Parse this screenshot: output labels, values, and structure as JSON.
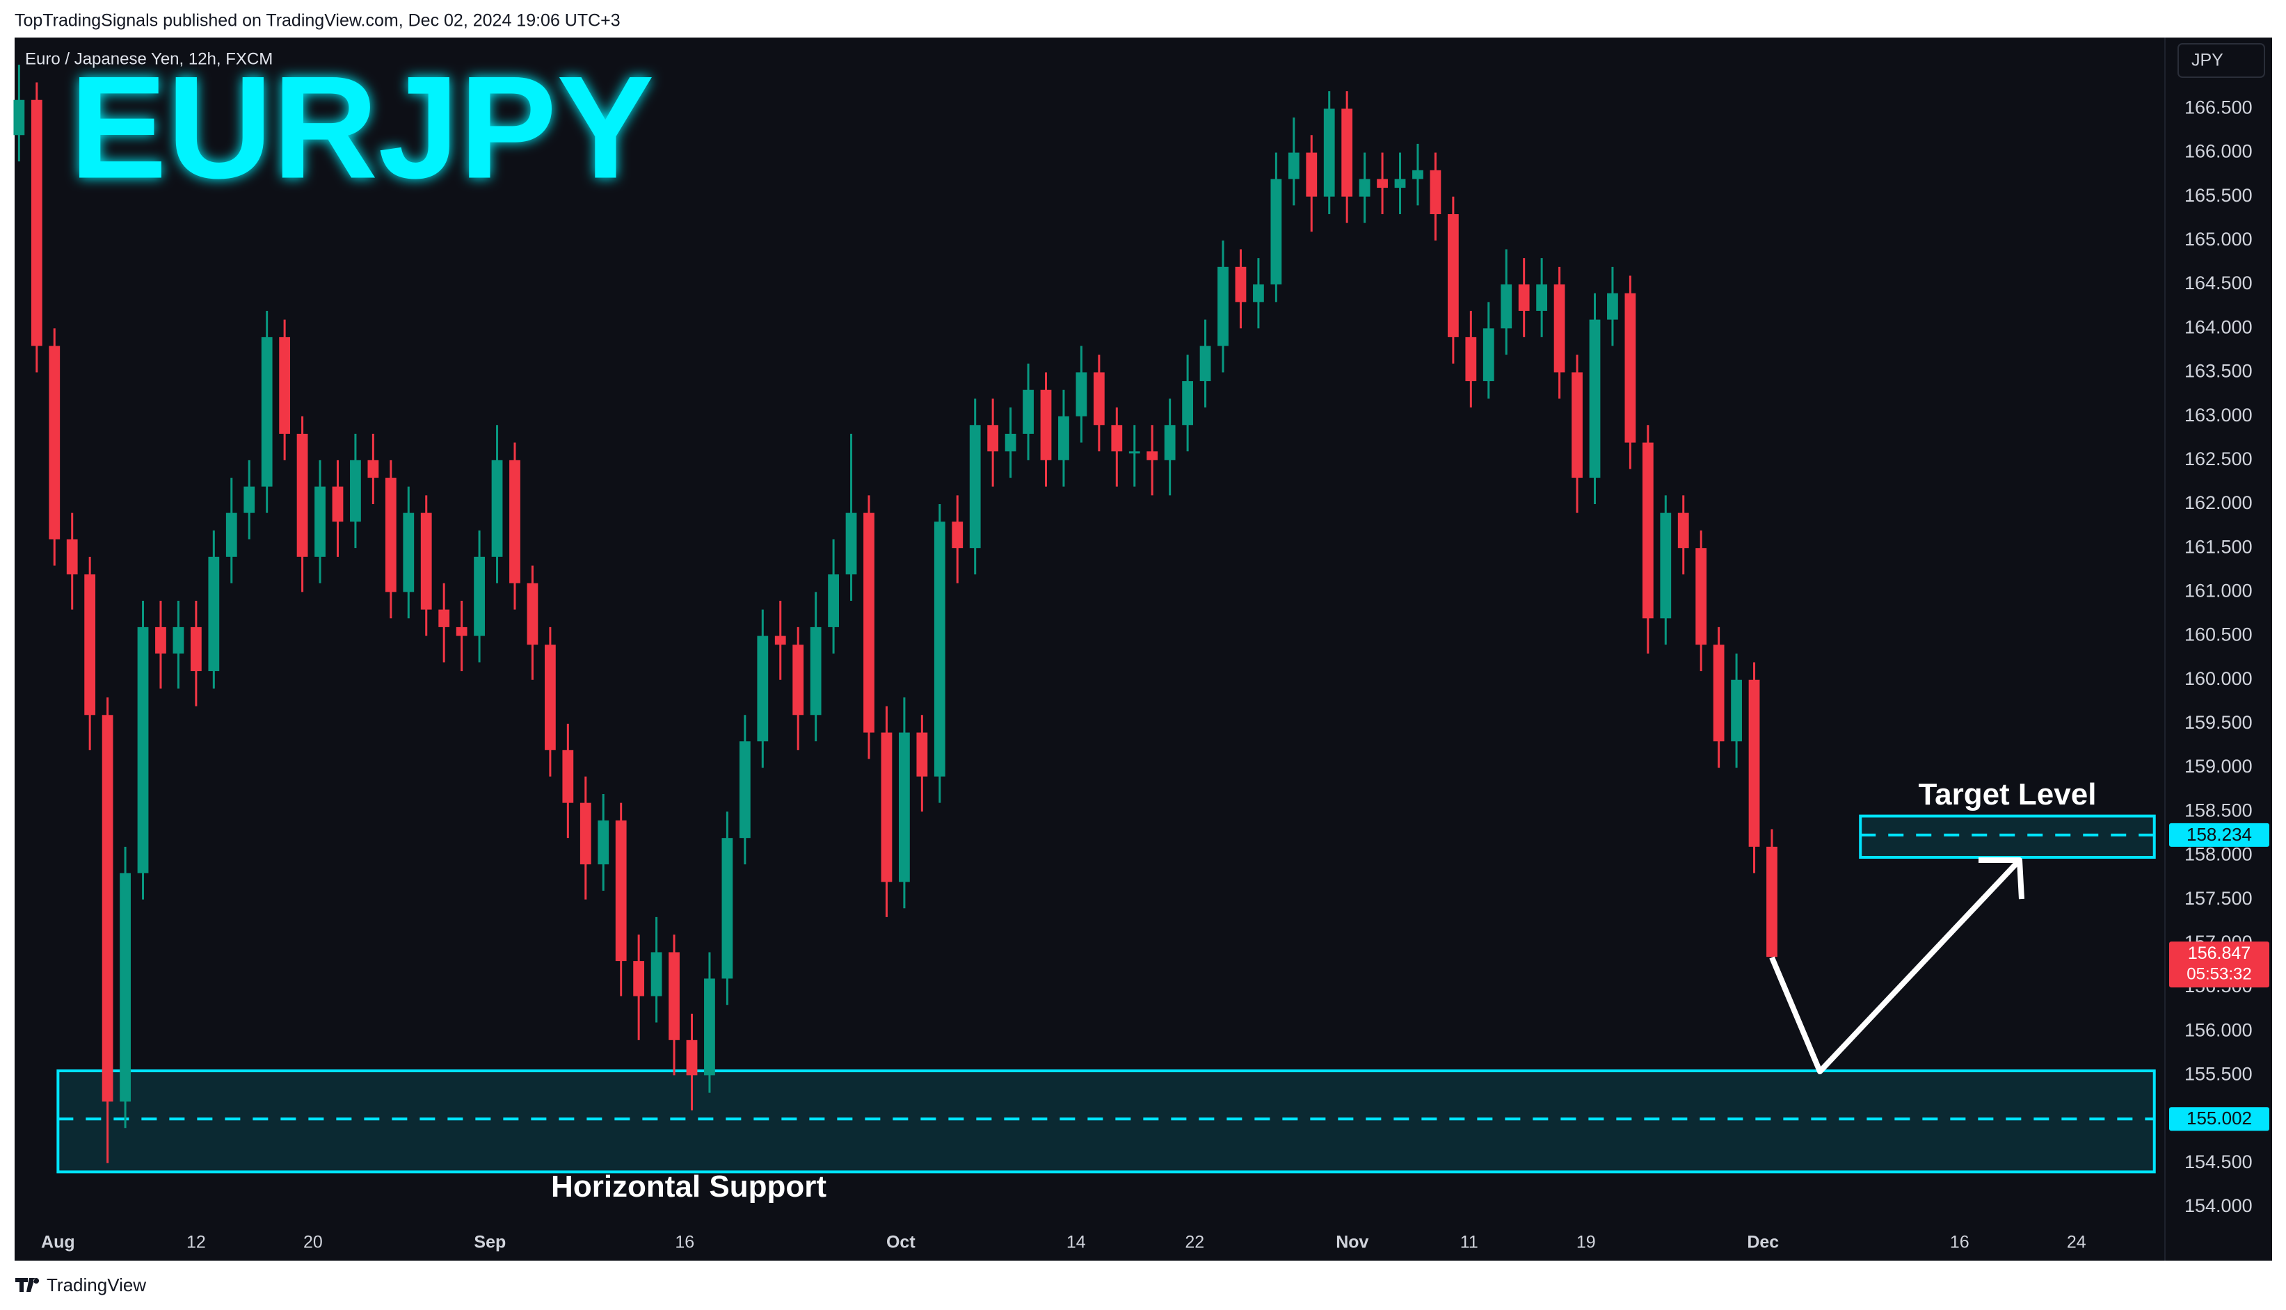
{
  "header": {
    "publisher": "TopTradingSignals published on TradingView.com, Dec 02, 2024 19:06 UTC+3",
    "footer": "TradingView"
  },
  "chart_data": {
    "type": "candlestick",
    "title": "EURJPY",
    "subtitle": "Euro / Japanese Yen, 12h, FXCM",
    "currency": "JPY",
    "countdown": "05:53:32",
    "up_color": "#089981",
    "down_color": "#f23645",
    "grid": false,
    "open": [
      166.2,
      166.6,
      163.8,
      161.6,
      161.2,
      159.6,
      155.2,
      157.8,
      160.6,
      160.3,
      160.6,
      160.1,
      161.4,
      161.9,
      162.2,
      163.9,
      162.8,
      161.4,
      162.2,
      161.8,
      162.5,
      162.3,
      161.0,
      161.9,
      160.8,
      160.6,
      160.5,
      161.4,
      162.5,
      161.1,
      160.4,
      159.2,
      158.6,
      157.9,
      158.4,
      156.8,
      156.4,
      156.9,
      155.9,
      155.5,
      156.6,
      158.2,
      159.3,
      160.5,
      160.4,
      159.6,
      160.6,
      161.2,
      161.9,
      159.4,
      157.7,
      159.4,
      158.9,
      161.8,
      161.5,
      162.9,
      162.6,
      162.8,
      163.3,
      162.5,
      163.0,
      163.5,
      162.9,
      162.6,
      162.6,
      162.5,
      162.9,
      163.4,
      163.8,
      164.7,
      164.3,
      164.5,
      165.7,
      166.0,
      165.5,
      166.5,
      165.5,
      165.7,
      165.6,
      165.7,
      165.8,
      165.3,
      163.9,
      163.4,
      164.0,
      164.5,
      164.2,
      164.5,
      163.5,
      162.3,
      164.1,
      164.4,
      162.7,
      160.7,
      161.9,
      161.5,
      160.4,
      159.3,
      160.0,
      158.1
    ],
    "high": [
      167.0,
      166.8,
      164.0,
      161.9,
      161.4,
      159.8,
      158.1,
      160.9,
      160.9,
      160.9,
      160.9,
      161.7,
      162.3,
      162.5,
      164.2,
      164.1,
      163.0,
      162.5,
      162.5,
      162.8,
      162.8,
      162.5,
      162.2,
      162.1,
      161.1,
      160.9,
      161.7,
      162.9,
      162.7,
      161.3,
      160.6,
      159.5,
      158.9,
      158.7,
      158.6,
      157.1,
      157.3,
      157.1,
      156.2,
      156.9,
      158.5,
      159.6,
      160.8,
      160.9,
      160.6,
      161.0,
      161.6,
      162.8,
      162.1,
      159.7,
      159.8,
      159.6,
      162.0,
      162.1,
      163.2,
      163.2,
      163.1,
      163.6,
      163.5,
      163.3,
      163.8,
      163.7,
      163.1,
      162.9,
      162.9,
      163.2,
      163.7,
      164.1,
      165.0,
      164.9,
      164.8,
      166.0,
      166.4,
      166.2,
      166.7,
      166.7,
      166.0,
      166.0,
      166.0,
      166.1,
      166.0,
      165.5,
      164.2,
      164.3,
      164.9,
      164.8,
      164.8,
      164.7,
      163.7,
      164.4,
      164.7,
      164.6,
      162.9,
      162.1,
      162.1,
      161.7,
      160.6,
      160.3,
      160.2,
      158.3
    ],
    "low": [
      165.9,
      163.5,
      161.3,
      160.8,
      159.2,
      154.5,
      154.9,
      157.5,
      159.9,
      159.9,
      159.7,
      159.9,
      161.1,
      161.6,
      161.9,
      162.5,
      161.0,
      161.1,
      161.4,
      161.5,
      162.0,
      160.7,
      160.7,
      160.5,
      160.2,
      160.1,
      160.2,
      161.1,
      160.8,
      160.0,
      158.9,
      158.2,
      157.5,
      157.6,
      156.4,
      155.9,
      156.1,
      155.5,
      155.1,
      155.3,
      156.3,
      157.9,
      159.0,
      160.0,
      159.2,
      159.3,
      160.3,
      160.9,
      159.1,
      157.3,
      157.4,
      158.5,
      158.6,
      161.1,
      161.2,
      162.2,
      162.3,
      162.5,
      162.2,
      162.2,
      162.7,
      162.6,
      162.2,
      162.2,
      162.1,
      162.1,
      162.6,
      163.1,
      163.5,
      164.0,
      164.0,
      164.3,
      165.4,
      165.1,
      165.3,
      165.2,
      165.2,
      165.3,
      165.3,
      165.4,
      165.0,
      163.6,
      163.1,
      163.2,
      163.7,
      163.9,
      163.9,
      163.2,
      161.9,
      162.0,
      163.8,
      162.4,
      160.3,
      160.4,
      161.2,
      160.1,
      159.0,
      159.0,
      157.8,
      156.847
    ],
    "close": [
      166.6,
      163.8,
      161.6,
      161.2,
      159.6,
      155.2,
      157.8,
      160.6,
      160.3,
      160.6,
      160.1,
      161.4,
      161.9,
      162.2,
      163.9,
      162.8,
      161.4,
      162.2,
      161.8,
      162.5,
      162.3,
      161.0,
      161.9,
      160.8,
      160.6,
      160.5,
      161.4,
      162.5,
      161.1,
      160.4,
      159.2,
      158.6,
      157.9,
      158.4,
      156.8,
      156.4,
      156.9,
      155.9,
      155.5,
      156.6,
      158.2,
      159.3,
      160.5,
      160.4,
      159.6,
      160.6,
      161.2,
      161.9,
      159.4,
      157.7,
      159.4,
      158.9,
      161.8,
      161.5,
      162.9,
      162.6,
      162.8,
      163.3,
      162.5,
      163.0,
      163.5,
      162.9,
      162.6,
      162.6,
      162.5,
      162.9,
      163.4,
      163.8,
      164.7,
      164.3,
      164.5,
      165.7,
      166.0,
      165.5,
      166.5,
      165.5,
      165.7,
      165.6,
      165.7,
      165.8,
      165.3,
      163.9,
      163.4,
      164.0,
      164.5,
      164.2,
      164.5,
      163.5,
      162.3,
      164.1,
      164.4,
      162.7,
      160.7,
      161.9,
      161.5,
      160.4,
      159.3,
      160.0,
      158.1,
      156.847
    ],
    "xlim": [
      -0.25,
      121.2
    ],
    "xticks": [
      {
        "value": 2.2,
        "label": "Aug"
      },
      {
        "value": 10,
        "label": "12"
      },
      {
        "value": 16.6,
        "label": "20"
      },
      {
        "value": 26.6,
        "label": "Sep"
      },
      {
        "value": 37.6,
        "label": "16"
      },
      {
        "value": 49.8,
        "label": "Oct"
      },
      {
        "value": 59.7,
        "label": "14"
      },
      {
        "value": 66.4,
        "label": "22"
      },
      {
        "value": 75.3,
        "label": "Nov"
      },
      {
        "value": 81.9,
        "label": "11"
      },
      {
        "value": 88.5,
        "label": "19"
      },
      {
        "value": 98.5,
        "label": "Dec"
      },
      {
        "value": 109.6,
        "label": "16"
      },
      {
        "value": 116.2,
        "label": "24"
      }
    ],
    "ylim": [
      153.39,
      167.31
    ],
    "yticks": [
      {
        "value": 154,
        "label": "154.000"
      },
      {
        "value": 154.5,
        "label": "154.500"
      },
      {
        "value": 155,
        "label": "155.000"
      },
      {
        "value": 155.5,
        "label": "155.500"
      },
      {
        "value": 156,
        "label": "156.000"
      },
      {
        "value": 156.5,
        "label": "156.500"
      },
      {
        "value": 157,
        "label": "157.000"
      },
      {
        "value": 157.5,
        "label": "157.500"
      },
      {
        "value": 158,
        "label": "158.000"
      },
      {
        "value": 158.5,
        "label": "158.500"
      },
      {
        "value": 159,
        "label": "159.000"
      },
      {
        "value": 159.5,
        "label": "159.500"
      },
      {
        "value": 160,
        "label": "160.000"
      },
      {
        "value": 160.5,
        "label": "160.500"
      },
      {
        "value": 161,
        "label": "161.000"
      },
      {
        "value": 161.5,
        "label": "161.500"
      },
      {
        "value": 162,
        "label": "162.000"
      },
      {
        "value": 162.5,
        "label": "162.500"
      },
      {
        "value": 163,
        "label": "163.000"
      },
      {
        "value": 163.5,
        "label": "163.500"
      },
      {
        "value": 164,
        "label": "164.000"
      },
      {
        "value": 164.5,
        "label": "164.500"
      },
      {
        "value": 165,
        "label": "165.000"
      },
      {
        "value": 165.5,
        "label": "165.500"
      },
      {
        "value": 166,
        "label": "166.000"
      },
      {
        "value": 166.5,
        "label": "166.500"
      }
    ],
    "zones": [
      {
        "label": "Target Level",
        "low": 157.98,
        "high": 158.45,
        "level": 158.234,
        "start": 104,
        "end": 120.6,
        "label_pos": "above"
      },
      {
        "label": "Horizontal Support",
        "low": 154.4,
        "high": 155.55,
        "level": 155.002,
        "start": 2.2,
        "end": 120.6,
        "label_pos": "below"
      }
    ],
    "zone_color": "#00e5ff"
  }
}
